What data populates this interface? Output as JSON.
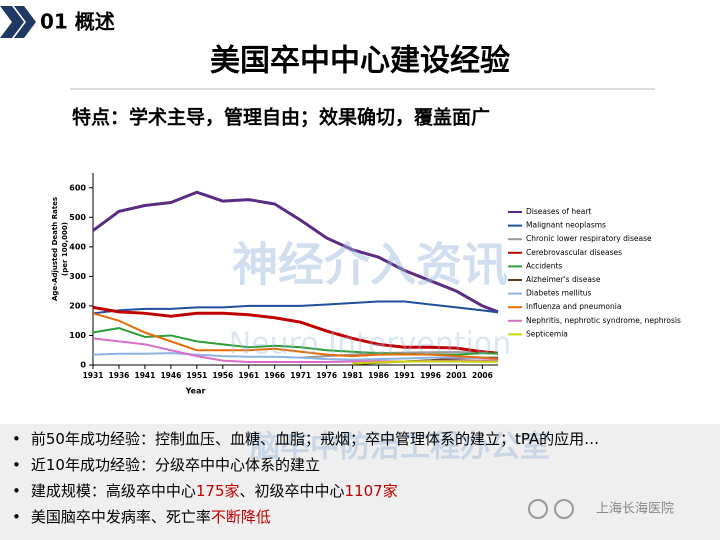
{
  "section": "01 概述",
  "title": "美国卒中中心建设经验",
  "subtitle": "特点：学术主导，管理自由；效果确切，覆盖面广",
  "watermark": [
    "神经介入资讯",
    "Neuro Intervention",
    "脑卒中防治工程办公室"
  ],
  "logo_text": "上海长海医院",
  "bullets": [
    [
      {
        "text": "前50年成功经验：控制血压、血糖、血脂；戒烟；卒中管理体系的建立；tPA的应用…",
        "color": "#000000"
      }
    ],
    [
      {
        "text": "近10年成功经验：分级卒中中心体系的建立",
        "color": "#000000"
      }
    ],
    [
      {
        "text": "建成规模：高级卒中中心",
        "color": "#000000"
      },
      {
        "text": "175家",
        "color": "#c00000"
      },
      {
        "text": "、初级卒中中心",
        "color": "#000000"
      },
      {
        "text": "1107家",
        "color": "#c00000"
      }
    ],
    [
      {
        "text": "美国脑卒中发病率、死亡率",
        "color": "#000000"
      },
      {
        "text": "不断降低",
        "color": "#c00000"
      }
    ]
  ],
  "chart_data": {
    "type": "line",
    "x_label": "Year",
    "y_label": [
      "Age-Adjusted Death Rates",
      "(per 100,000)"
    ],
    "x": [
      1931,
      1936,
      1941,
      1946,
      1951,
      1956,
      1961,
      1966,
      1971,
      1976,
      1981,
      1986,
      1991,
      1996,
      2001,
      2006,
      2009
    ],
    "xlim": [
      1931,
      2009
    ],
    "xticks": [
      1931,
      1936,
      1941,
      1946,
      1951,
      1956,
      1961,
      1966,
      1971,
      1976,
      1981,
      1986,
      1991,
      1996,
      2001,
      2006
    ],
    "ylim": [
      0,
      650
    ],
    "yticks": [
      0,
      100,
      200,
      300,
      400,
      500,
      600
    ],
    "series": [
      {
        "name": "Diseases of heart",
        "color": "#5b2c83",
        "values": [
          455,
          520,
          540,
          550,
          585,
          555,
          560,
          545,
          490,
          430,
          390,
          365,
          320,
          285,
          250,
          200,
          180
        ]
      },
      {
        "name": "Malignant neoplasms",
        "color": "#1f4e9c",
        "values": [
          175,
          185,
          190,
          190,
          195,
          195,
          200,
          200,
          200,
          205,
          210,
          215,
          215,
          205,
          195,
          185,
          178
        ]
      },
      {
        "name": "Chronic lower respiratory disease",
        "color": "#9a9a9a",
        "values": [
          null,
          null,
          null,
          null,
          null,
          null,
          null,
          null,
          25,
          30,
          35,
          40,
          42,
          43,
          44,
          41,
          42
        ]
      },
      {
        "name": "Cerebrovascular diseases",
        "color": "#c00000",
        "values": [
          195,
          180,
          175,
          165,
          175,
          175,
          170,
          160,
          145,
          115,
          90,
          70,
          60,
          60,
          57,
          45,
          40
        ]
      },
      {
        "name": "Accidents",
        "color": "#2e9e3a",
        "values": [
          110,
          125,
          95,
          100,
          80,
          70,
          60,
          65,
          60,
          50,
          45,
          40,
          37,
          36,
          35,
          40,
          38
        ]
      },
      {
        "name": "Alzheimer's disease",
        "color": "#5a3a1a",
        "values": [
          null,
          null,
          null,
          null,
          null,
          null,
          null,
          null,
          null,
          null,
          2,
          8,
          12,
          16,
          22,
          24,
          25
        ]
      },
      {
        "name": "Diabetes mellitus",
        "color": "#8db3e2",
        "values": [
          35,
          38,
          38,
          40,
          35,
          30,
          28,
          28,
          25,
          20,
          18,
          20,
          22,
          25,
          25,
          23,
          21
        ]
      },
      {
        "name": "Influenza and pneumonia",
        "color": "#e46c0a",
        "values": [
          175,
          150,
          110,
          80,
          50,
          50,
          50,
          55,
          45,
          35,
          30,
          35,
          36,
          35,
          30,
          25,
          20
        ]
      },
      {
        "name": "Nephritis, nephrotic syndrome, nephrosis",
        "color": "#d86ec8",
        "values": [
          90,
          80,
          70,
          50,
          30,
          15,
          10,
          10,
          10,
          10,
          12,
          13,
          12,
          14,
          15,
          15,
          15
        ]
      },
      {
        "name": "Septicemia",
        "color": "#c4d600",
        "values": [
          null,
          null,
          null,
          null,
          null,
          null,
          null,
          null,
          null,
          null,
          5,
          9,
          12,
          12,
          12,
          11,
          11
        ]
      }
    ]
  }
}
